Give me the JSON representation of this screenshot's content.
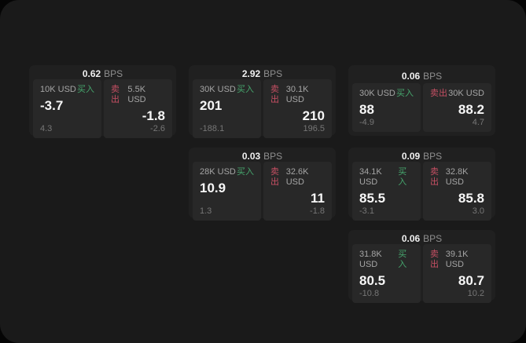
{
  "labels": {
    "bps_unit": "BPS",
    "buy": "买入",
    "sell": "卖出"
  },
  "colors": {
    "window_bg": "#1a1a1a",
    "card_bg": "#202020",
    "panel_bg": "#282828",
    "buy_green": "#46a56d",
    "sell_red": "#c64f63",
    "value_white": "#f7f7f7",
    "label_gray": "#a5a5a5",
    "sub_gray": "#767676"
  },
  "cards": [
    {
      "col": 1,
      "row": 1,
      "bps": "0.62",
      "buy": {
        "notional": "10K USD",
        "value": "-3.7",
        "sub": "4.3"
      },
      "sell": {
        "notional": "5.5K USD",
        "value": "-1.8",
        "sub": "-2.6"
      }
    },
    {
      "col": 2,
      "row": 1,
      "bps": "2.92",
      "buy": {
        "notional": "30K USD",
        "value": "201",
        "sub": "-188.1"
      },
      "sell": {
        "notional": "30.1K USD",
        "value": "210",
        "sub": "196.5"
      }
    },
    {
      "col": 3,
      "row": 1,
      "bps": "0.06",
      "buy": {
        "notional": "30K USD",
        "value": "88",
        "sub": "-4.9"
      },
      "sell": {
        "notional": "30K USD",
        "value": "88.2",
        "sub": "4.7"
      }
    },
    {
      "col": 2,
      "row": 2,
      "bps": "0.03",
      "buy": {
        "notional": "28K USD",
        "value": "10.9",
        "sub": "1.3"
      },
      "sell": {
        "notional": "32.6K USD",
        "value": "11",
        "sub": "-1.8"
      }
    },
    {
      "col": 3,
      "row": 2,
      "bps": "0.09",
      "buy": {
        "notional": "34.1K USD",
        "value": "85.5",
        "sub": "-3.1"
      },
      "sell": {
        "notional": "32.8K USD",
        "value": "85.8",
        "sub": "3.0"
      }
    },
    {
      "col": 3,
      "row": 3,
      "bps": "0.06",
      "buy": {
        "notional": "31.8K USD",
        "value": "80.5",
        "sub": "-10.8"
      },
      "sell": {
        "notional": "39.1K USD",
        "value": "80.7",
        "sub": "10.2"
      }
    }
  ]
}
